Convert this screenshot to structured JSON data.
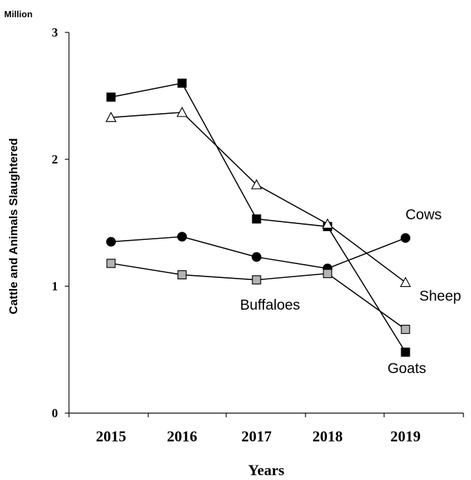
{
  "chart_data": {
    "type": "line",
    "unit_label": "Million",
    "xlabel": "Years",
    "ylabel": "Cattle and Animals Slaughtered",
    "categories": [
      "2015",
      "2016",
      "2017",
      "2018",
      "2019"
    ],
    "ylim": [
      0,
      3
    ],
    "yticks": [
      "0",
      "1",
      "2",
      "3"
    ],
    "grid": false,
    "series": [
      {
        "name": "Goats",
        "marker": "square",
        "fill": "#000000",
        "values": [
          2.49,
          2.6,
          1.53,
          1.47,
          0.48
        ]
      },
      {
        "name": "Sheep",
        "marker": "triangle",
        "fill": "#ffffff",
        "values": [
          2.33,
          2.37,
          1.8,
          1.49,
          1.03
        ]
      },
      {
        "name": "Cows",
        "marker": "circle",
        "fill": "#000000",
        "values": [
          1.35,
          1.39,
          1.23,
          1.14,
          1.38
        ]
      },
      {
        "name": "Buffaloes",
        "marker": "square",
        "fill": "#b3b3b3",
        "values": [
          1.18,
          1.09,
          1.05,
          1.1,
          0.66
        ]
      }
    ]
  }
}
